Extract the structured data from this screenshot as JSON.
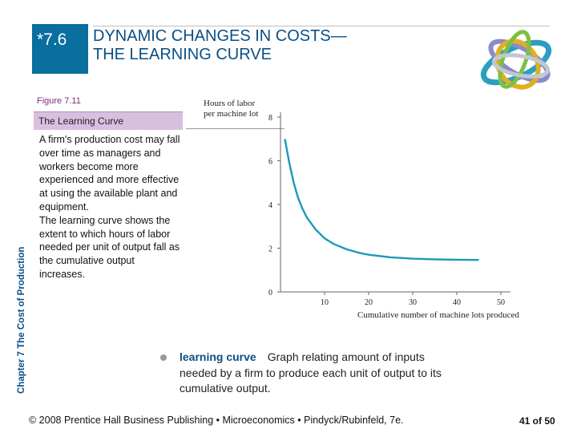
{
  "header": {
    "section_number": "*7.6",
    "title_line1": "DYNAMIC CHANGES IN COSTS—",
    "title_line2": "THE LEARNING CURVE"
  },
  "figure": {
    "label": "Figure 7.11",
    "name": "The Learning Curve",
    "caption_p1": "A firm's production cost may fall over time as managers and workers become more experienced and more effective at using the available plant and equipment.",
    "caption_p2": "The learning curve shows the extent to which hours of labor needed per unit of output fall as the cumulative output increases."
  },
  "sidebar": {
    "chapter_label": "Chapter 7  The Cost of Production"
  },
  "definition": {
    "term": "learning curve",
    "text": "Graph relating amount of inputs needed by a firm to produce each unit of output to its cumulative output."
  },
  "footer": {
    "copyright": "© 2008 Prentice Hall Business Publishing  •  Microeconomics  •  Pindyck/Rubinfeld, 7e.",
    "page": "41 of 50"
  },
  "colors": {
    "accent_blue": "#0a6e9e",
    "title_blue": "#0a4f86",
    "curve": "#1a9ab8",
    "figure_band": "#d9bfdf"
  },
  "chart_data": {
    "type": "line",
    "ylabel_line1": "Hours of labor",
    "ylabel_line2": "per machine lot",
    "xlabel": "Cumulative number of machine lots produced",
    "xlim": [
      0,
      50
    ],
    "ylim": [
      0,
      8
    ],
    "xticks": [
      10,
      20,
      30,
      40,
      50
    ],
    "yticks": [
      0,
      2,
      4,
      6,
      8
    ],
    "grid": false,
    "series": [
      {
        "x": [
          1,
          2,
          3,
          4,
          5,
          6,
          8,
          10,
          12,
          15,
          18,
          20,
          25,
          30,
          35,
          40,
          45
        ],
        "y": [
          7.0,
          5.9,
          5.0,
          4.3,
          3.8,
          3.4,
          2.85,
          2.45,
          2.2,
          1.95,
          1.78,
          1.7,
          1.58,
          1.52,
          1.49,
          1.47,
          1.46
        ]
      }
    ]
  }
}
